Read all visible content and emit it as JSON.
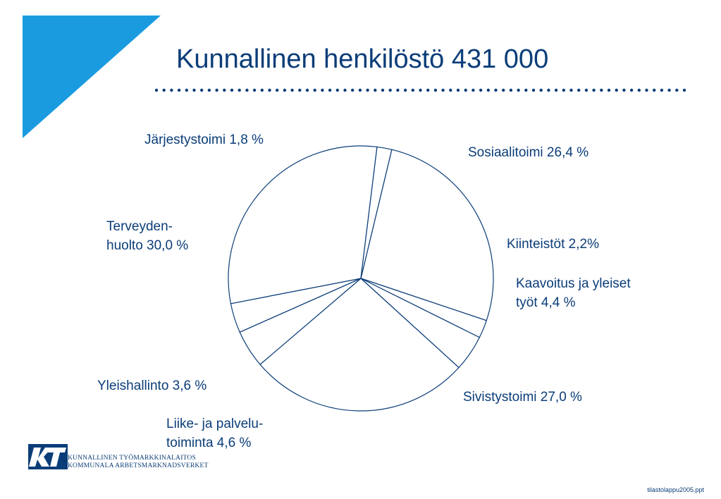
{
  "colors": {
    "brand": "#0b3d78",
    "accent": "#1a9be0",
    "background": "#ffffff"
  },
  "title": "Kunnallinen henkilöstö 431 000",
  "labels": {
    "sosiaalitoimi": "Sosiaalitoimi 26,4 %",
    "kiinteistot": "Kiinteistöt 2,2%",
    "kaavoitus_1": "Kaavoitus ja yleiset",
    "kaavoitus_2": "työt 4,4 %",
    "sivistystoimi": "Sivistystoimi 27,0 %",
    "liike_1": "Liike- ja palvelu-",
    "liike_2": "toiminta 4,6 %",
    "yleishallinto": "Yleishallinto 3,6 %",
    "terveydenhuolto_1": "Terveyden-",
    "terveydenhuolto_2": "huolto 30,0 %",
    "jarjestystoimi": "Järjestystoimi 1,8 %"
  },
  "chart_data": {
    "type": "pie",
    "title": "Kunnallinen henkilöstö 431 000",
    "categories": [
      "Sosiaalitoimi",
      "Kiinteistöt",
      "Kaavoitus ja yleiset työt",
      "Sivistystoimi",
      "Liike- ja palvelutoiminta",
      "Yleishallinto",
      "Terveydenhuolto",
      "Järjestystoimi"
    ],
    "values": [
      26.4,
      2.2,
      4.4,
      27.0,
      4.6,
      3.6,
      30.0,
      1.8
    ],
    "unit": "%",
    "slice_fill": "#ffffff",
    "slice_stroke": "#0b3d78"
  },
  "logo": {
    "line1": "KUNNALLINEN TYÖMARKKINALAITOS",
    "line2": "KOMMUNALA ARBETSMARKNADSVERKET"
  },
  "footer": "tilastolappu2005.ppt"
}
